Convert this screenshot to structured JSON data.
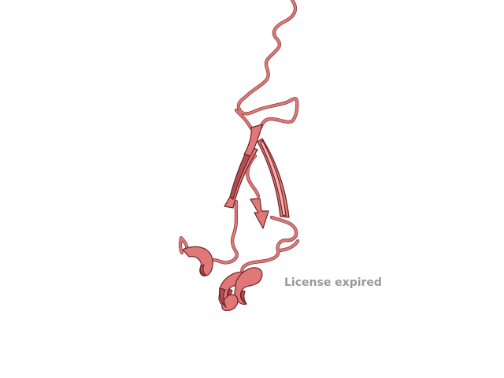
{
  "watermark": {
    "text": "License expired",
    "color": "#9a9a9a"
  },
  "molecule": {
    "style": "cartoon",
    "color": "#e07878",
    "shade": "#b04f52",
    "dark": "#6e2326",
    "highlight": "#f3b2b0"
  }
}
